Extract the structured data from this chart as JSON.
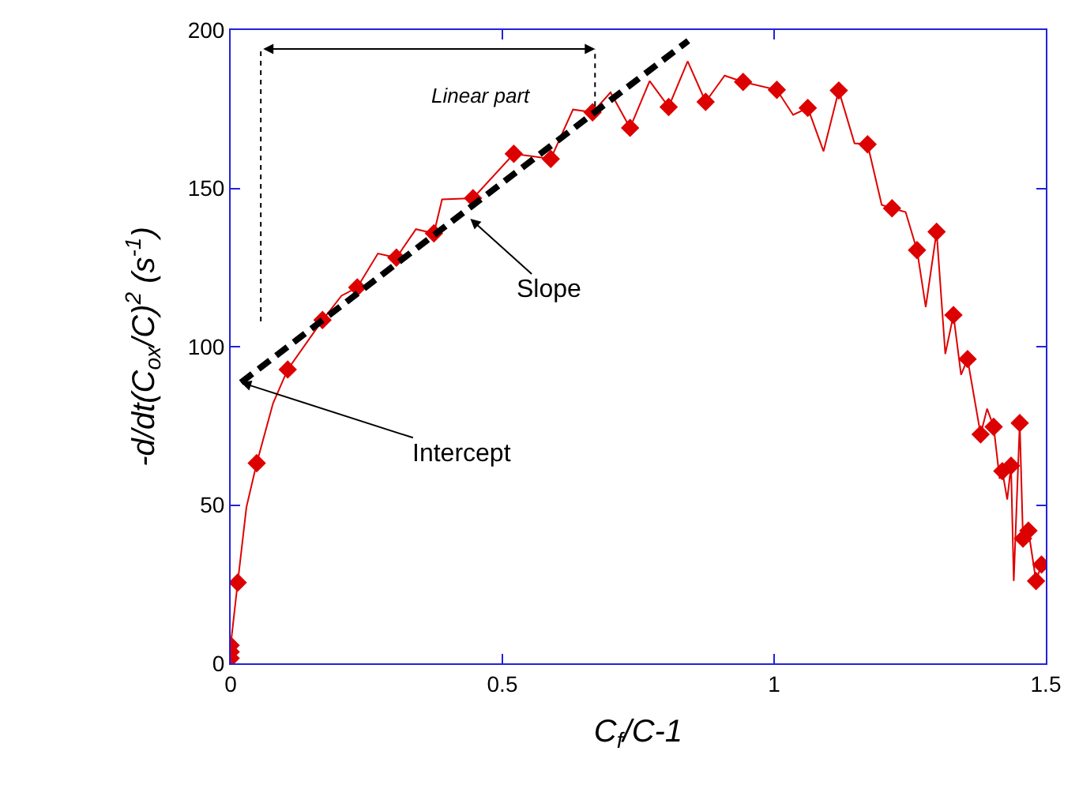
{
  "chart_data": {
    "type": "line",
    "xlabel": "C$_{f}$/C-1",
    "ylabel": "-d/dt(C$_{ox}$/C)$^{2}$ (s$^{-1}$)",
    "xlim": [
      0,
      1.5
    ],
    "xticks": [
      0,
      0.5,
      1,
      1.5
    ],
    "ylim": [
      0,
      200
    ],
    "yticks": [
      0,
      50,
      100,
      150,
      200
    ],
    "series": [
      {
        "color": "#e00000",
        "marker": "none",
        "line_style": "solid",
        "x": [
          0,
          0,
          0,
          0.013,
          0.029,
          0.048,
          0.078,
          0.105,
          0.169,
          0.204,
          0.233,
          0.271,
          0.305,
          0.341,
          0.374,
          0.389,
          0.446,
          0.521,
          0.556,
          0.589,
          0.63,
          0.666,
          0.699,
          0.735,
          0.771,
          0.806,
          0.841,
          0.874,
          0.909,
          0.943,
          1.005,
          1.035,
          1.062,
          1.091,
          1.119,
          1.148,
          1.172,
          1.198,
          1.217,
          1.242,
          1.263,
          1.279,
          1.299,
          1.315,
          1.33,
          1.344,
          1.356,
          1.38,
          1.392,
          1.404,
          1.415,
          1.42,
          1.429,
          1.436,
          1.441,
          1.452,
          1.458,
          1.468,
          1.482,
          1.492
        ],
        "values": [
          1.6,
          3.6,
          5.7,
          25.5,
          49.3,
          63.2,
          82.1,
          92.8,
          108.4,
          116.1,
          118.7,
          129.4,
          128.1,
          137.1,
          135.8,
          146.5,
          146.9,
          160.9,
          160.1,
          159.3,
          174.9,
          174.0,
          180.3,
          169.1,
          183.9,
          175.7,
          190.1,
          177.3,
          185.6,
          183.6,
          181.1,
          173.2,
          175.4,
          161.7,
          180.9,
          164.2,
          163.9,
          144.8,
          143.7,
          142.5,
          130.5,
          112.5,
          136.3,
          97.7,
          110.0,
          91.1,
          96.1,
          72.3,
          80.4,
          74.7,
          58.3,
          60.7,
          51.7,
          62.4,
          26.0,
          75.9,
          39.4,
          41.9,
          26.0,
          31.2
        ]
      },
      {
        "type": "scatter",
        "color": "#dd0000",
        "marker": "diamond",
        "x": [
          0,
          0,
          0,
          0.013,
          0.048,
          0.105,
          0.169,
          0.233,
          0.305,
          0.374,
          0.446,
          0.521,
          0.589,
          0.666,
          0.735,
          0.806,
          0.874,
          0.943,
          1.005,
          1.062,
          1.119,
          1.172,
          1.217,
          1.263,
          1.299,
          1.33,
          1.356,
          1.38,
          1.404,
          1.42,
          1.436,
          1.452,
          1.458,
          1.468,
          1.482,
          1.492
        ],
        "values": [
          1.6,
          3.6,
          5.7,
          25.5,
          63.2,
          92.8,
          108.4,
          118.7,
          128.1,
          135.8,
          146.9,
          160.9,
          159.3,
          174.0,
          169.1,
          175.7,
          177.3,
          183.6,
          181.1,
          175.4,
          180.9,
          163.9,
          143.7,
          130.5,
          136.3,
          110.0,
          96.1,
          72.3,
          74.7,
          60.7,
          62.4,
          75.9,
          39.4,
          41.9,
          26.0,
          31.2
        ]
      },
      {
        "type": "line",
        "color": "#000000",
        "marker": "none",
        "line_style": "dashed",
        "x": [
          0.019,
          0.842
        ],
        "values": [
          88.7,
          196.6
        ]
      }
    ],
    "annotations": [
      "Linear part",
      {
        "text": "Slope",
        "x": 0.441,
        "y": 140.4
      },
      {
        "text": "Intercept",
        "x": 0.019,
        "y": 88.7
      }
    ]
  }
}
